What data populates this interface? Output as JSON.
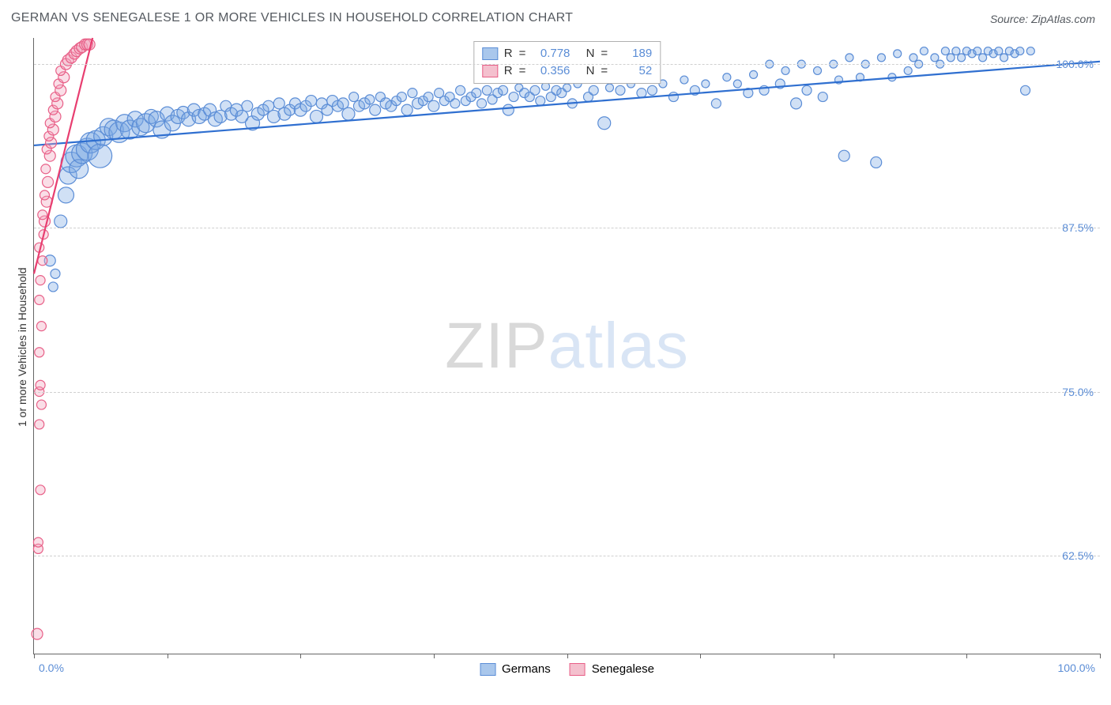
{
  "title": "GERMAN VS SENEGALESE 1 OR MORE VEHICLES IN HOUSEHOLD CORRELATION CHART",
  "source": "Source: ZipAtlas.com",
  "y_axis_label": "1 or more Vehicles in Household",
  "watermark": {
    "a": "ZIP",
    "b": "atlas"
  },
  "chart": {
    "type": "scatter",
    "background_color": "#ffffff",
    "grid_color": "#d0d0d0",
    "axis_color": "#666666",
    "xlim": [
      0,
      100
    ],
    "ylim": [
      55,
      102
    ],
    "x_ticks": [
      0,
      12.5,
      25,
      37.5,
      50,
      62.5,
      75,
      87.5,
      100
    ],
    "x_tick_labels_shown": {
      "0": "0.0%",
      "100": "100.0%"
    },
    "y_ticks": [
      62.5,
      75.0,
      87.5,
      100.0
    ],
    "y_tick_labels": [
      "62.5%",
      "75.0%",
      "87.5%",
      "100.0%"
    ],
    "tick_label_color": "#5b8dd6",
    "tick_label_fontsize": 14
  },
  "legend": {
    "rows": [
      {
        "swatch_fill": "#a9c7ec",
        "swatch_border": "#5b8dd6",
        "r": "0.778",
        "n": "189"
      },
      {
        "swatch_fill": "#f4c0ce",
        "swatch_border": "#e85f87",
        "r": "0.356",
        "n": "52"
      }
    ],
    "r_label": "R",
    "n_label": "N",
    "equals": "="
  },
  "bottom_legend": [
    {
      "label": "Germans",
      "fill": "#a9c7ec",
      "border": "#5b8dd6"
    },
    {
      "label": "Senegalese",
      "fill": "#f4c0ce",
      "border": "#e85f87"
    }
  ],
  "series": [
    {
      "name": "Germans",
      "marker_fill": "rgba(120,165,225,0.35)",
      "marker_stroke": "#5b8dd6",
      "marker_stroke_width": 1.2,
      "trend_color": "#2f6fd0",
      "trend_width": 2.2,
      "trend": {
        "x1": 0,
        "y1": 93.8,
        "x2": 100,
        "y2": 100.2
      },
      "points": [
        {
          "x": 1.5,
          "y": 85.0,
          "r": 7
        },
        {
          "x": 1.8,
          "y": 83.0,
          "r": 6
        },
        {
          "x": 2.0,
          "y": 84.0,
          "r": 6
        },
        {
          "x": 2.5,
          "y": 88.0,
          "r": 8
        },
        {
          "x": 3.0,
          "y": 90.0,
          "r": 10
        },
        {
          "x": 3.2,
          "y": 91.5,
          "r": 11
        },
        {
          "x": 3.5,
          "y": 92.5,
          "r": 13
        },
        {
          "x": 4.0,
          "y": 93.0,
          "r": 14
        },
        {
          "x": 4.2,
          "y": 92.0,
          "r": 12
        },
        {
          "x": 4.5,
          "y": 93.2,
          "r": 13
        },
        {
          "x": 5.0,
          "y": 93.5,
          "r": 14
        },
        {
          "x": 5.3,
          "y": 94.0,
          "r": 13
        },
        {
          "x": 5.8,
          "y": 94.2,
          "r": 12
        },
        {
          "x": 6.2,
          "y": 93.0,
          "r": 15
        },
        {
          "x": 6.5,
          "y": 94.5,
          "r": 12
        },
        {
          "x": 7.0,
          "y": 95.2,
          "r": 11
        },
        {
          "x": 7.5,
          "y": 95.0,
          "r": 12
        },
        {
          "x": 8.0,
          "y": 94.8,
          "r": 13
        },
        {
          "x": 8.5,
          "y": 95.5,
          "r": 11
        },
        {
          "x": 9.0,
          "y": 95.0,
          "r": 12
        },
        {
          "x": 9.5,
          "y": 95.8,
          "r": 10
        },
        {
          "x": 10.0,
          "y": 95.2,
          "r": 11
        },
        {
          "x": 10.5,
          "y": 95.5,
          "r": 12
        },
        {
          "x": 11.0,
          "y": 96.0,
          "r": 9
        },
        {
          "x": 11.5,
          "y": 95.8,
          "r": 10
        },
        {
          "x": 12.0,
          "y": 95.0,
          "r": 11
        },
        {
          "x": 12.5,
          "y": 96.2,
          "r": 9
        },
        {
          "x": 13.0,
          "y": 95.5,
          "r": 10
        },
        {
          "x": 13.5,
          "y": 96.0,
          "r": 9
        },
        {
          "x": 14.0,
          "y": 96.3,
          "r": 8
        },
        {
          "x": 14.5,
          "y": 95.8,
          "r": 9
        },
        {
          "x": 15.0,
          "y": 96.5,
          "r": 8
        },
        {
          "x": 15.5,
          "y": 96.0,
          "r": 9
        },
        {
          "x": 16.0,
          "y": 96.2,
          "r": 8
        },
        {
          "x": 16.5,
          "y": 96.5,
          "r": 8
        },
        {
          "x": 17.0,
          "y": 95.8,
          "r": 9
        },
        {
          "x": 17.5,
          "y": 96.0,
          "r": 8
        },
        {
          "x": 18.0,
          "y": 96.8,
          "r": 7
        },
        {
          "x": 18.5,
          "y": 96.2,
          "r": 8
        },
        {
          "x": 19.0,
          "y": 96.5,
          "r": 8
        },
        {
          "x": 19.5,
          "y": 96.0,
          "r": 8
        },
        {
          "x": 20.0,
          "y": 96.8,
          "r": 7
        },
        {
          "x": 20.5,
          "y": 95.5,
          "r": 9
        },
        {
          "x": 21.0,
          "y": 96.2,
          "r": 8
        },
        {
          "x": 21.5,
          "y": 96.5,
          "r": 7
        },
        {
          "x": 22.0,
          "y": 96.8,
          "r": 7
        },
        {
          "x": 22.5,
          "y": 96.0,
          "r": 8
        },
        {
          "x": 23.0,
          "y": 97.0,
          "r": 7
        },
        {
          "x": 23.5,
          "y": 96.2,
          "r": 8
        },
        {
          "x": 24.0,
          "y": 96.5,
          "r": 7
        },
        {
          "x": 24.5,
          "y": 97.0,
          "r": 7
        },
        {
          "x": 25.0,
          "y": 96.5,
          "r": 8
        },
        {
          "x": 25.5,
          "y": 96.8,
          "r": 7
        },
        {
          "x": 26.0,
          "y": 97.2,
          "r": 7
        },
        {
          "x": 26.5,
          "y": 96.0,
          "r": 8
        },
        {
          "x": 27.0,
          "y": 97.0,
          "r": 7
        },
        {
          "x": 27.5,
          "y": 96.5,
          "r": 7
        },
        {
          "x": 28.0,
          "y": 97.2,
          "r": 7
        },
        {
          "x": 28.5,
          "y": 96.8,
          "r": 7
        },
        {
          "x": 29.0,
          "y": 97.0,
          "r": 7
        },
        {
          "x": 29.5,
          "y": 96.2,
          "r": 8
        },
        {
          "x": 30.0,
          "y": 97.5,
          "r": 6
        },
        {
          "x": 30.5,
          "y": 96.8,
          "r": 7
        },
        {
          "x": 31.0,
          "y": 97.0,
          "r": 7
        },
        {
          "x": 31.5,
          "y": 97.3,
          "r": 6
        },
        {
          "x": 32.0,
          "y": 96.5,
          "r": 7
        },
        {
          "x": 32.5,
          "y": 97.5,
          "r": 6
        },
        {
          "x": 33.0,
          "y": 97.0,
          "r": 7
        },
        {
          "x": 33.5,
          "y": 96.8,
          "r": 7
        },
        {
          "x": 34.0,
          "y": 97.2,
          "r": 6
        },
        {
          "x": 34.5,
          "y": 97.5,
          "r": 6
        },
        {
          "x": 35.0,
          "y": 96.5,
          "r": 7
        },
        {
          "x": 35.5,
          "y": 97.8,
          "r": 6
        },
        {
          "x": 36.0,
          "y": 97.0,
          "r": 7
        },
        {
          "x": 36.5,
          "y": 97.2,
          "r": 6
        },
        {
          "x": 37.0,
          "y": 97.5,
          "r": 6
        },
        {
          "x": 37.5,
          "y": 96.8,
          "r": 7
        },
        {
          "x": 38.0,
          "y": 97.8,
          "r": 6
        },
        {
          "x": 38.5,
          "y": 97.2,
          "r": 6
        },
        {
          "x": 39.0,
          "y": 97.5,
          "r": 6
        },
        {
          "x": 39.5,
          "y": 97.0,
          "r": 6
        },
        {
          "x": 40.0,
          "y": 98.0,
          "r": 6
        },
        {
          "x": 40.5,
          "y": 97.2,
          "r": 6
        },
        {
          "x": 41.0,
          "y": 97.5,
          "r": 6
        },
        {
          "x": 41.5,
          "y": 97.8,
          "r": 6
        },
        {
          "x": 42.0,
          "y": 97.0,
          "r": 6
        },
        {
          "x": 42.5,
          "y": 98.0,
          "r": 6
        },
        {
          "x": 43.0,
          "y": 97.3,
          "r": 6
        },
        {
          "x": 43.5,
          "y": 97.8,
          "r": 6
        },
        {
          "x": 44.0,
          "y": 98.0,
          "r": 6
        },
        {
          "x": 44.5,
          "y": 96.5,
          "r": 7
        },
        {
          "x": 45.0,
          "y": 97.5,
          "r": 6
        },
        {
          "x": 45.5,
          "y": 98.2,
          "r": 5
        },
        {
          "x": 46.0,
          "y": 97.8,
          "r": 6
        },
        {
          "x": 46.5,
          "y": 97.5,
          "r": 6
        },
        {
          "x": 47.0,
          "y": 98.0,
          "r": 6
        },
        {
          "x": 47.5,
          "y": 97.2,
          "r": 6
        },
        {
          "x": 48.0,
          "y": 98.3,
          "r": 5
        },
        {
          "x": 48.5,
          "y": 97.5,
          "r": 6
        },
        {
          "x": 49.0,
          "y": 98.0,
          "r": 6
        },
        {
          "x": 49.5,
          "y": 97.8,
          "r": 6
        },
        {
          "x": 50.0,
          "y": 98.2,
          "r": 5
        },
        {
          "x": 50.5,
          "y": 97.0,
          "r": 6
        },
        {
          "x": 51.0,
          "y": 98.5,
          "r": 5
        },
        {
          "x": 52.0,
          "y": 97.5,
          "r": 6
        },
        {
          "x": 52.5,
          "y": 98.0,
          "r": 6
        },
        {
          "x": 53.5,
          "y": 95.5,
          "r": 8
        },
        {
          "x": 54.0,
          "y": 98.2,
          "r": 5
        },
        {
          "x": 55.0,
          "y": 98.0,
          "r": 6
        },
        {
          "x": 56.0,
          "y": 98.5,
          "r": 5
        },
        {
          "x": 57.0,
          "y": 97.8,
          "r": 6
        },
        {
          "x": 58.0,
          "y": 98.0,
          "r": 6
        },
        {
          "x": 59.0,
          "y": 98.5,
          "r": 5
        },
        {
          "x": 60.0,
          "y": 97.5,
          "r": 6
        },
        {
          "x": 61.0,
          "y": 98.8,
          "r": 5
        },
        {
          "x": 62.0,
          "y": 98.0,
          "r": 6
        },
        {
          "x": 63.0,
          "y": 98.5,
          "r": 5
        },
        {
          "x": 64.0,
          "y": 97.0,
          "r": 6
        },
        {
          "x": 65.0,
          "y": 99.0,
          "r": 5
        },
        {
          "x": 66.0,
          "y": 98.5,
          "r": 5
        },
        {
          "x": 67.0,
          "y": 97.8,
          "r": 6
        },
        {
          "x": 67.5,
          "y": 99.2,
          "r": 5
        },
        {
          "x": 68.5,
          "y": 98.0,
          "r": 6
        },
        {
          "x": 69.0,
          "y": 100.0,
          "r": 5
        },
        {
          "x": 70.0,
          "y": 98.5,
          "r": 6
        },
        {
          "x": 70.5,
          "y": 99.5,
          "r": 5
        },
        {
          "x": 71.5,
          "y": 97.0,
          "r": 7
        },
        {
          "x": 72.0,
          "y": 100.0,
          "r": 5
        },
        {
          "x": 72.5,
          "y": 98.0,
          "r": 6
        },
        {
          "x": 73.5,
          "y": 99.5,
          "r": 5
        },
        {
          "x": 74.0,
          "y": 97.5,
          "r": 6
        },
        {
          "x": 75.0,
          "y": 100.0,
          "r": 5
        },
        {
          "x": 75.5,
          "y": 98.8,
          "r": 5
        },
        {
          "x": 76.0,
          "y": 93.0,
          "r": 7
        },
        {
          "x": 76.5,
          "y": 100.5,
          "r": 5
        },
        {
          "x": 77.5,
          "y": 99.0,
          "r": 5
        },
        {
          "x": 78.0,
          "y": 100.0,
          "r": 5
        },
        {
          "x": 79.0,
          "y": 92.5,
          "r": 7
        },
        {
          "x": 79.5,
          "y": 100.5,
          "r": 5
        },
        {
          "x": 80.5,
          "y": 99.0,
          "r": 5
        },
        {
          "x": 81.0,
          "y": 100.8,
          "r": 5
        },
        {
          "x": 82.0,
          "y": 99.5,
          "r": 5
        },
        {
          "x": 82.5,
          "y": 100.5,
          "r": 5
        },
        {
          "x": 83.0,
          "y": 100.0,
          "r": 5
        },
        {
          "x": 83.5,
          "y": 101.0,
          "r": 5
        },
        {
          "x": 84.5,
          "y": 100.5,
          "r": 5
        },
        {
          "x": 85.0,
          "y": 100.0,
          "r": 5
        },
        {
          "x": 85.5,
          "y": 101.0,
          "r": 5
        },
        {
          "x": 86.0,
          "y": 100.5,
          "r": 5
        },
        {
          "x": 86.5,
          "y": 101.0,
          "r": 5
        },
        {
          "x": 87.0,
          "y": 100.5,
          "r": 5
        },
        {
          "x": 87.5,
          "y": 101.0,
          "r": 5
        },
        {
          "x": 88.0,
          "y": 100.8,
          "r": 5
        },
        {
          "x": 88.5,
          "y": 101.0,
          "r": 5
        },
        {
          "x": 89.0,
          "y": 100.5,
          "r": 5
        },
        {
          "x": 89.5,
          "y": 101.0,
          "r": 5
        },
        {
          "x": 90.0,
          "y": 100.8,
          "r": 5
        },
        {
          "x": 90.5,
          "y": 101.0,
          "r": 5
        },
        {
          "x": 91.0,
          "y": 100.5,
          "r": 5
        },
        {
          "x": 91.5,
          "y": 101.0,
          "r": 5
        },
        {
          "x": 92.0,
          "y": 100.8,
          "r": 5
        },
        {
          "x": 92.5,
          "y": 101.0,
          "r": 5
        },
        {
          "x": 93.0,
          "y": 98.0,
          "r": 6
        },
        {
          "x": 93.5,
          "y": 101.0,
          "r": 5
        }
      ]
    },
    {
      "name": "Senegalese",
      "marker_fill": "rgba(240,160,185,0.35)",
      "marker_stroke": "#e85f87",
      "marker_stroke_width": 1.2,
      "trend_color": "#e83e70",
      "trend_width": 2.2,
      "trend": {
        "x1": 0,
        "y1": 84.0,
        "x2": 5.5,
        "y2": 102.0
      },
      "points": [
        {
          "x": 0.3,
          "y": 56.5,
          "r": 7
        },
        {
          "x": 0.4,
          "y": 63.0,
          "r": 6
        },
        {
          "x": 0.4,
          "y": 63.5,
          "r": 6
        },
        {
          "x": 0.6,
          "y": 67.5,
          "r": 6
        },
        {
          "x": 0.5,
          "y": 72.5,
          "r": 6
        },
        {
          "x": 0.7,
          "y": 74.0,
          "r": 6
        },
        {
          "x": 0.5,
          "y": 75.0,
          "r": 6
        },
        {
          "x": 0.6,
          "y": 75.5,
          "r": 6
        },
        {
          "x": 0.5,
          "y": 78.0,
          "r": 6
        },
        {
          "x": 0.7,
          "y": 80.0,
          "r": 6
        },
        {
          "x": 0.5,
          "y": 82.0,
          "r": 6
        },
        {
          "x": 0.6,
          "y": 83.5,
          "r": 6
        },
        {
          "x": 0.8,
          "y": 85.0,
          "r": 6
        },
        {
          "x": 0.5,
          "y": 86.0,
          "r": 6
        },
        {
          "x": 0.9,
          "y": 87.0,
          "r": 6
        },
        {
          "x": 1.0,
          "y": 88.0,
          "r": 7
        },
        {
          "x": 0.8,
          "y": 88.5,
          "r": 6
        },
        {
          "x": 1.2,
          "y": 89.5,
          "r": 7
        },
        {
          "x": 1.0,
          "y": 90.0,
          "r": 6
        },
        {
          "x": 1.3,
          "y": 91.0,
          "r": 7
        },
        {
          "x": 1.1,
          "y": 92.0,
          "r": 6
        },
        {
          "x": 1.5,
          "y": 93.0,
          "r": 7
        },
        {
          "x": 1.2,
          "y": 93.5,
          "r": 6
        },
        {
          "x": 1.6,
          "y": 94.0,
          "r": 7
        },
        {
          "x": 1.4,
          "y": 94.5,
          "r": 6
        },
        {
          "x": 1.8,
          "y": 95.0,
          "r": 7
        },
        {
          "x": 1.5,
          "y": 95.5,
          "r": 6
        },
        {
          "x": 2.0,
          "y": 96.0,
          "r": 7
        },
        {
          "x": 1.8,
          "y": 96.5,
          "r": 6
        },
        {
          "x": 2.2,
          "y": 97.0,
          "r": 7
        },
        {
          "x": 2.0,
          "y": 97.5,
          "r": 6
        },
        {
          "x": 2.5,
          "y": 98.0,
          "r": 7
        },
        {
          "x": 2.3,
          "y": 98.5,
          "r": 6
        },
        {
          "x": 2.8,
          "y": 99.0,
          "r": 7
        },
        {
          "x": 2.5,
          "y": 99.5,
          "r": 6
        },
        {
          "x": 3.0,
          "y": 100.0,
          "r": 7
        },
        {
          "x": 3.2,
          "y": 100.3,
          "r": 7
        },
        {
          "x": 3.5,
          "y": 100.5,
          "r": 7
        },
        {
          "x": 3.8,
          "y": 100.8,
          "r": 7
        },
        {
          "x": 4.0,
          "y": 101.0,
          "r": 7
        },
        {
          "x": 4.3,
          "y": 101.2,
          "r": 7
        },
        {
          "x": 4.5,
          "y": 101.3,
          "r": 7
        },
        {
          "x": 4.8,
          "y": 101.5,
          "r": 7
        },
        {
          "x": 5.0,
          "y": 101.5,
          "r": 7
        },
        {
          "x": 5.2,
          "y": 101.5,
          "r": 7
        }
      ]
    }
  ]
}
